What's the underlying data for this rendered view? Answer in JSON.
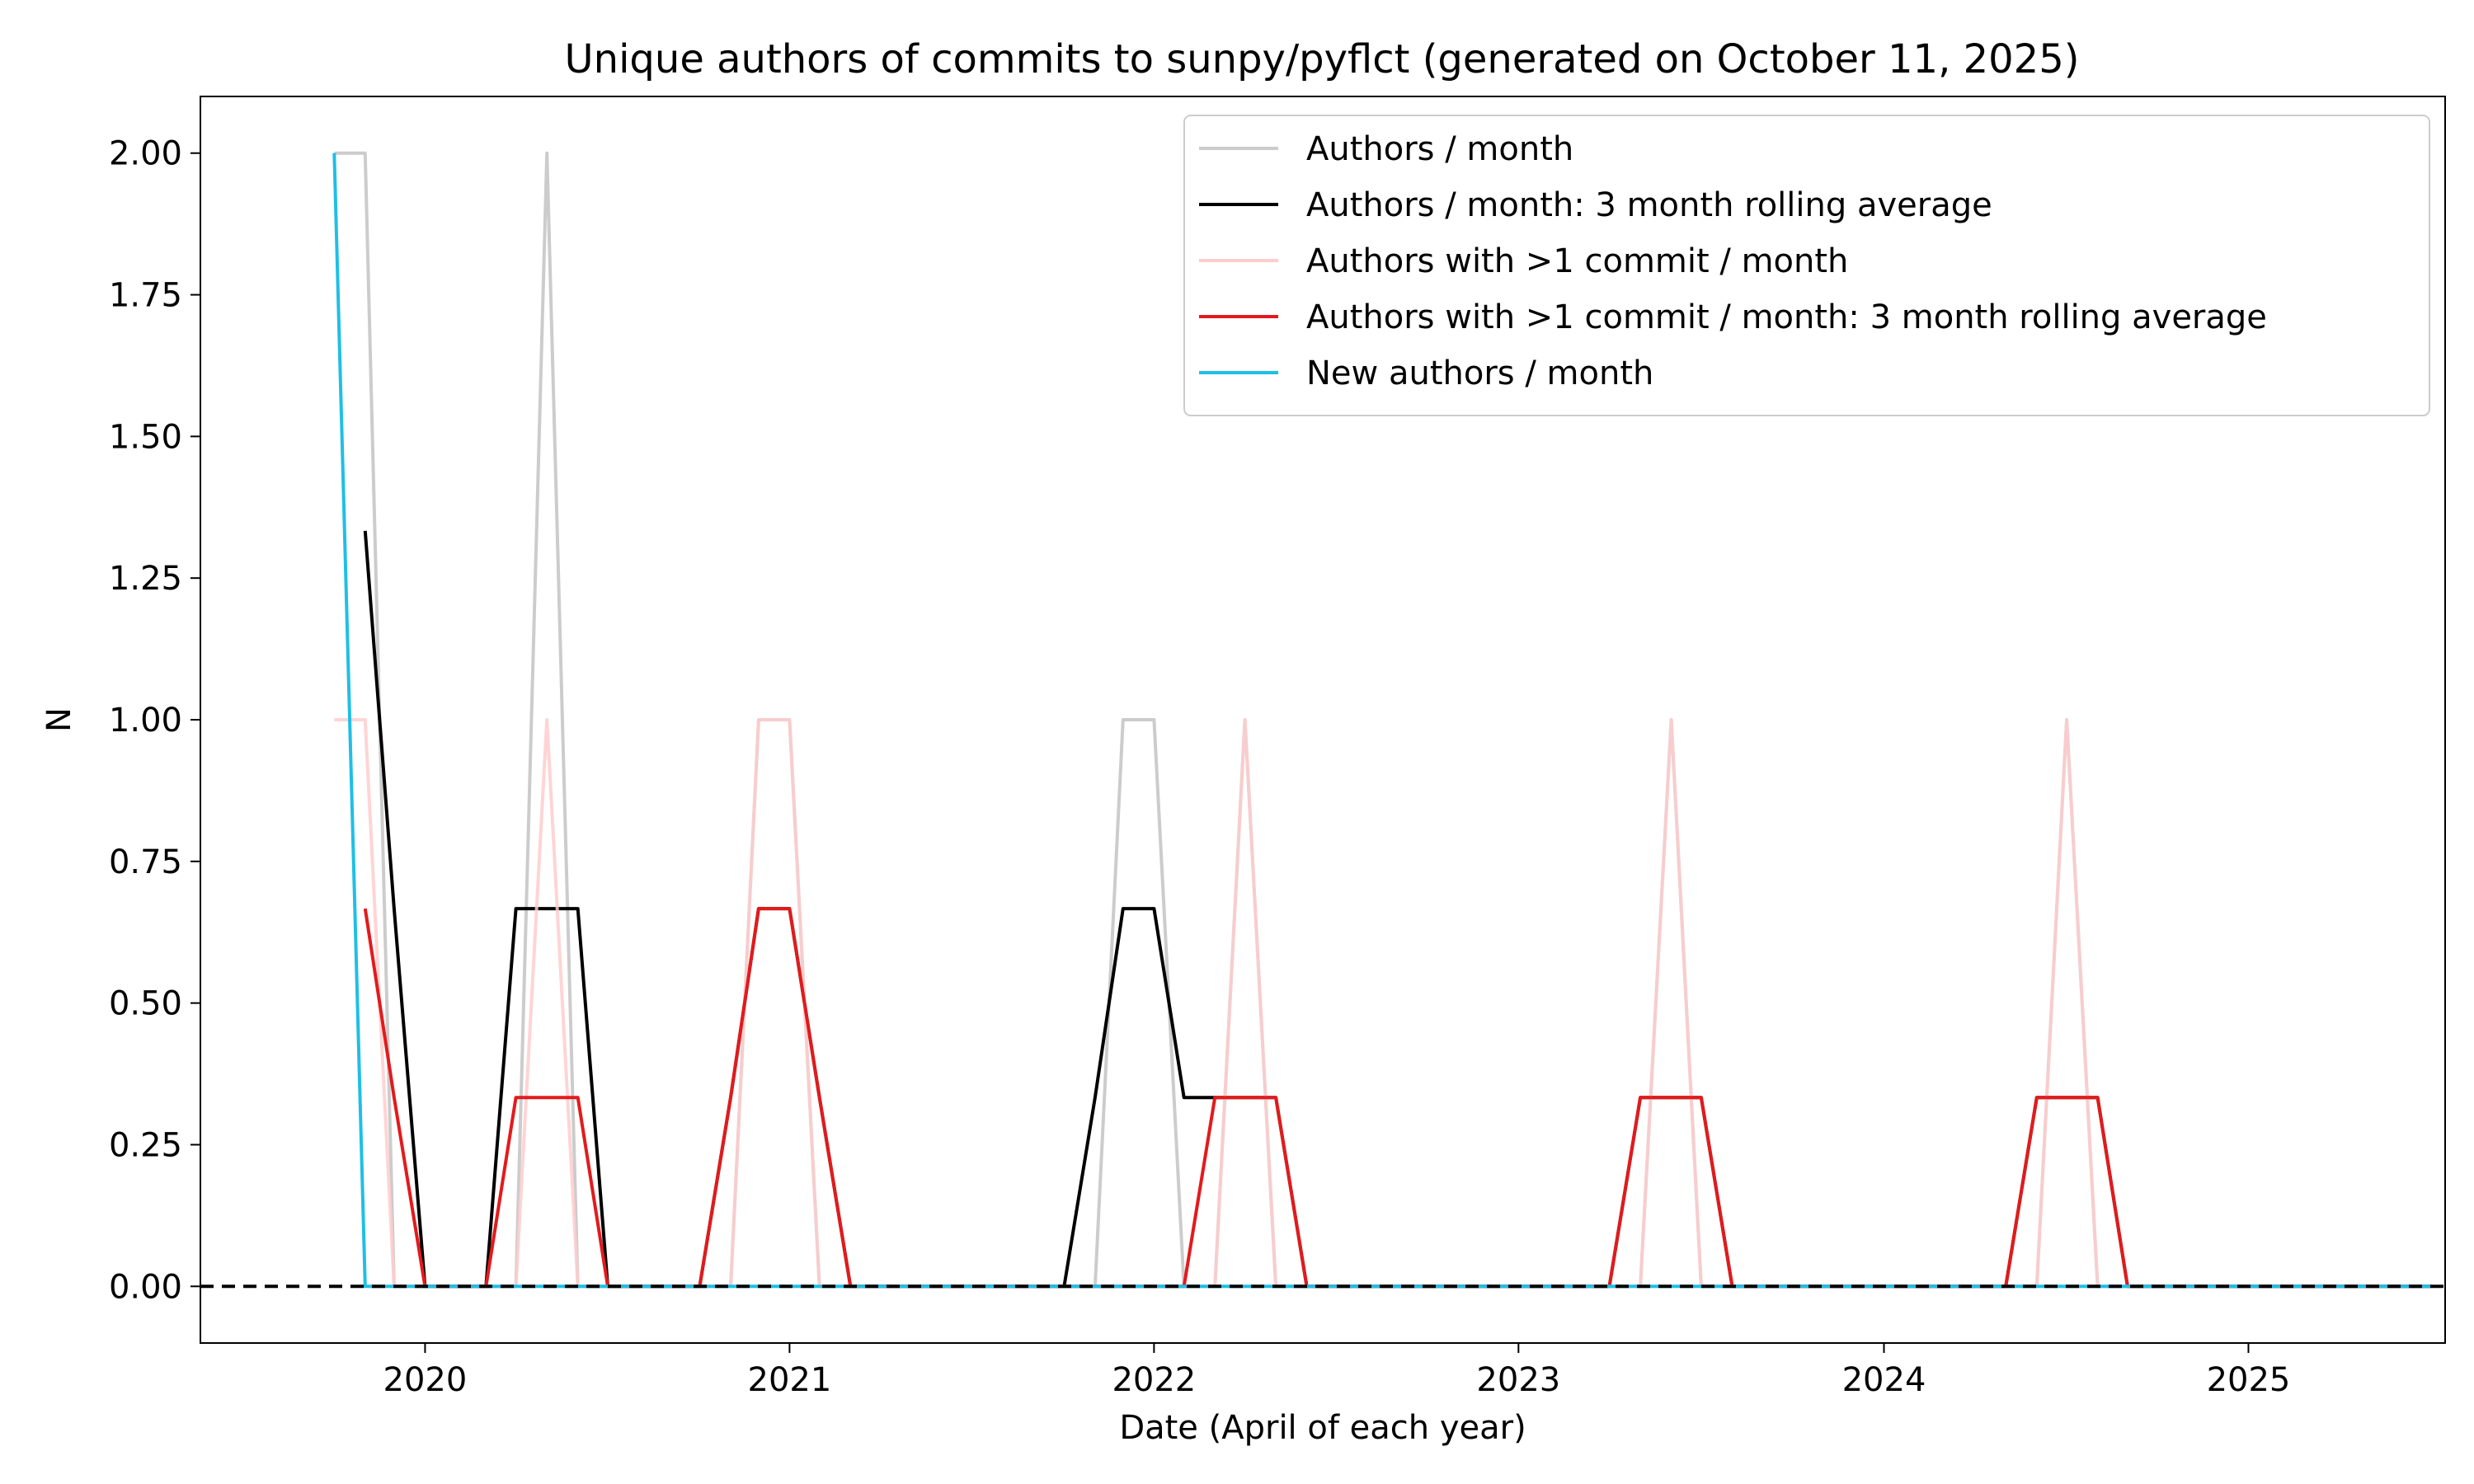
{
  "chart_data": {
    "type": "line",
    "title": "Unique authors of commits to sunpy/pyflct (generated on October 11, 2025)",
    "xlabel": "Date (April of each year)",
    "ylabel": "N",
    "xlim": [
      "2019-08-20",
      "2025-10-15"
    ],
    "ylim": [
      -0.1,
      2.1
    ],
    "x_ticks": [
      "2020",
      "2021",
      "2022",
      "2023",
      "2024",
      "2025"
    ],
    "y_ticks": [
      "0.00",
      "0.25",
      "0.50",
      "0.75",
      "1.00",
      "1.25",
      "1.50",
      "1.75",
      "2.00"
    ],
    "reference_line": {
      "y": 0,
      "style": "dashed",
      "color": "#000000"
    },
    "legend_position": "top-right",
    "x": [
      "2020-01",
      "2020-02",
      "2020-03",
      "2020-04",
      "2020-05",
      "2020-06",
      "2020-07",
      "2020-08",
      "2020-09",
      "2020-10",
      "2020-11",
      "2020-12",
      "2021-01",
      "2021-02",
      "2021-03",
      "2021-04",
      "2021-05",
      "2021-06",
      "2021-07",
      "2021-08",
      "2021-09",
      "2021-10",
      "2021-11",
      "2021-12",
      "2022-01",
      "2022-02",
      "2022-03",
      "2022-04",
      "2022-05",
      "2022-06",
      "2022-07",
      "2022-08",
      "2022-09",
      "2022-10",
      "2022-11",
      "2022-12",
      "2023-01",
      "2023-02",
      "2023-03",
      "2023-04",
      "2023-05",
      "2023-06",
      "2023-07",
      "2023-08",
      "2023-09",
      "2023-10",
      "2023-11",
      "2023-12",
      "2024-01",
      "2024-02",
      "2024-03",
      "2024-04",
      "2024-05",
      "2024-06",
      "2024-07",
      "2024-08",
      "2024-09",
      "2024-10",
      "2024-11",
      "2024-12",
      "2025-01",
      "2025-02",
      "2025-03",
      "2025-04",
      "2025-05",
      "2025-06",
      "2025-07",
      "2025-08",
      "2025-09",
      "2025-10"
    ],
    "series": [
      {
        "name": "Authors / month",
        "color": "#cccccc",
        "values": [
          2,
          2,
          0,
          0,
          0,
          0,
          0,
          2,
          0,
          0,
          0,
          0,
          0,
          0,
          1,
          1,
          0,
          0,
          0,
          0,
          0,
          0,
          0,
          0,
          0,
          0,
          1,
          1,
          0,
          0,
          1,
          0,
          0,
          0,
          0,
          0,
          0,
          0,
          0,
          0,
          0,
          0,
          0,
          0,
          1,
          0,
          0,
          0,
          0,
          0,
          0,
          0,
          0,
          0,
          0,
          0,
          0,
          1,
          0,
          0,
          0,
          0,
          0,
          0,
          0,
          0,
          0,
          0,
          0,
          0
        ]
      },
      {
        "name": "Authors / month: 3 month rolling average",
        "color": "#000000",
        "values": [
          null,
          1.3333,
          0.6667,
          0,
          0,
          0,
          0.6667,
          0.6667,
          0.6667,
          0,
          0,
          0,
          0,
          0.3333,
          0.6667,
          0.6667,
          0.3333,
          0,
          0,
          0,
          0,
          0,
          0,
          0,
          0,
          0.3333,
          0.6667,
          0.6667,
          0.3333,
          0.3333,
          0.3333,
          0.3333,
          0,
          0,
          0,
          0,
          0,
          0,
          0,
          0,
          0,
          0,
          0,
          0.3333,
          0.3333,
          0.3333,
          0,
          0,
          0,
          0,
          0,
          0,
          0,
          0,
          0,
          0,
          0.3333,
          0.3333,
          0.3333,
          0,
          0,
          0,
          0,
          0,
          0,
          0,
          0,
          0,
          0,
          0
        ]
      },
      {
        "name": "Authors with >1 commit / month",
        "color": "#ffcccc",
        "values": [
          1,
          1,
          0,
          0,
          0,
          0,
          0,
          1,
          0,
          0,
          0,
          0,
          0,
          0,
          1,
          1,
          0,
          0,
          0,
          0,
          0,
          0,
          0,
          0,
          0,
          0,
          0,
          0,
          0,
          0,
          1,
          0,
          0,
          0,
          0,
          0,
          0,
          0,
          0,
          0,
          0,
          0,
          0,
          0,
          1,
          0,
          0,
          0,
          0,
          0,
          0,
          0,
          0,
          0,
          0,
          0,
          0,
          1,
          0,
          0,
          0,
          0,
          0,
          0,
          0,
          0,
          0,
          0,
          0,
          0
        ]
      },
      {
        "name": "Authors with >1 commit / month: 3 month rolling average",
        "color": "#e31a1c",
        "values": [
          null,
          0.6667,
          0.3333,
          0,
          0,
          0,
          0.3333,
          0.3333,
          0.3333,
          0,
          0,
          0,
          0,
          0.3333,
          0.6667,
          0.6667,
          0.3333,
          0,
          0,
          0,
          0,
          0,
          0,
          0,
          0,
          0,
          0,
          0,
          0,
          0.3333,
          0.3333,
          0.3333,
          0,
          0,
          0,
          0,
          0,
          0,
          0,
          0,
          0,
          0,
          0,
          0.3333,
          0.3333,
          0.3333,
          0,
          0,
          0,
          0,
          0,
          0,
          0,
          0,
          0,
          0,
          0.3333,
          0.3333,
          0.3333,
          0,
          0,
          0,
          0,
          0,
          0,
          0,
          0,
          0,
          0,
          0
        ]
      },
      {
        "name": "New authors / month",
        "color": "#1fbfe6",
        "values": [
          2,
          0,
          0,
          0,
          0,
          0,
          0,
          0,
          0,
          0,
          0,
          0,
          0,
          0,
          0,
          0,
          0,
          0,
          0,
          0,
          0,
          0,
          0,
          0,
          0,
          0,
          0,
          0,
          0,
          0,
          0,
          0,
          0,
          0,
          0,
          0,
          0,
          0,
          0,
          0,
          0,
          0,
          0,
          0,
          0,
          0,
          0,
          0,
          0,
          0,
          0,
          0,
          0,
          0,
          0,
          0,
          0,
          0,
          0,
          0,
          0,
          0,
          0,
          0,
          0,
          0,
          0,
          0,
          0,
          0
        ]
      }
    ]
  }
}
